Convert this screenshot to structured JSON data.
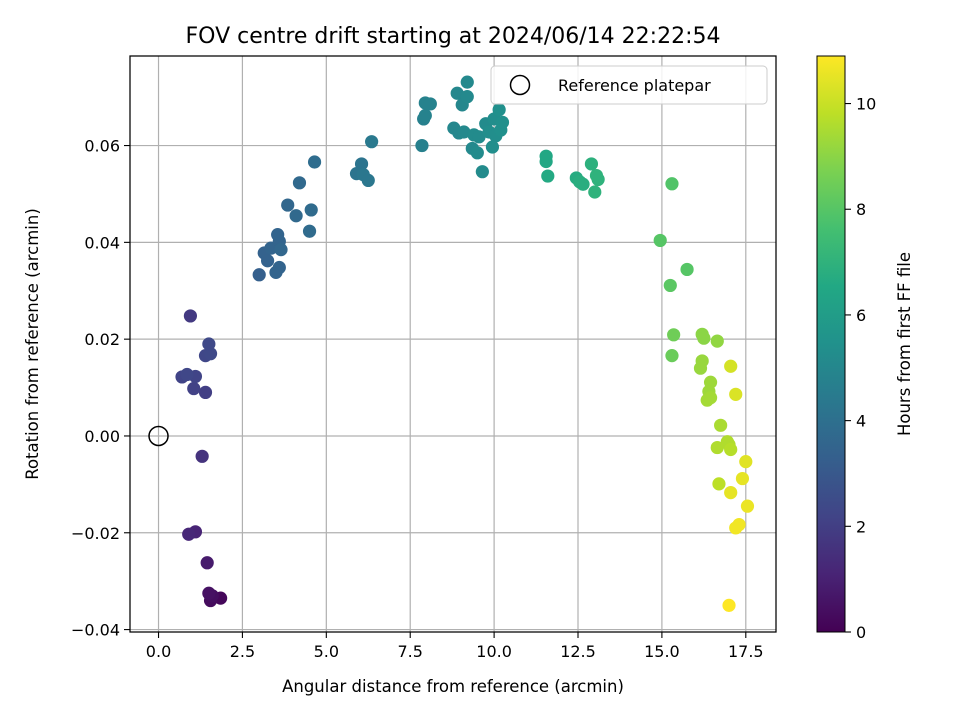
{
  "chart_data": {
    "type": "scatter",
    "title": "FOV centre drift starting at 2024/06/14 22:22:54",
    "xlabel": "Angular distance from reference (arcmin)",
    "ylabel": "Rotation from reference (arcmin)",
    "xlim": [
      -0.85,
      18.4
    ],
    "ylim": [
      -0.0405,
      0.0785
    ],
    "xticks": [
      0.0,
      2.5,
      5.0,
      7.5,
      10.0,
      12.5,
      15.0,
      17.5
    ],
    "xtick_labels": [
      "0.0",
      "2.5",
      "5.0",
      "7.5",
      "10.0",
      "12.5",
      "15.0",
      "17.5"
    ],
    "yticks": [
      -0.04,
      -0.02,
      0.0,
      0.02,
      0.04,
      0.06
    ],
    "ytick_labels": [
      "−0.04",
      "−0.02",
      "0.00",
      "0.02",
      "0.04",
      "0.06"
    ],
    "grid": true,
    "legend": {
      "placement": "top-right",
      "entries": [
        "Reference platepar"
      ]
    },
    "reference_point": {
      "name": "Reference platepar",
      "x": 0.0,
      "y": 0.0
    },
    "colorbar": {
      "label": "Hours from first FF file",
      "colormap": "viridis",
      "range": [
        0,
        10.9
      ],
      "ticks": [
        0,
        2,
        4,
        6,
        8,
        10
      ],
      "tick_labels": [
        "0",
        "2",
        "4",
        "6",
        "8",
        "10"
      ]
    },
    "points": [
      {
        "x": 1.85,
        "y": -0.0335,
        "h": 0.2
      },
      {
        "x": 1.55,
        "y": -0.034,
        "h": 0.3
      },
      {
        "x": 1.6,
        "y": -0.033,
        "h": 0.4
      },
      {
        "x": 1.5,
        "y": -0.0325,
        "h": 0.5
      },
      {
        "x": 1.45,
        "y": -0.0262,
        "h": 0.8
      },
      {
        "x": 1.1,
        "y": -0.0198,
        "h": 1.1
      },
      {
        "x": 0.9,
        "y": -0.0203,
        "h": 1.2
      },
      {
        "x": 1.3,
        "y": -0.0042,
        "h": 1.6
      },
      {
        "x": 0.95,
        "y": 0.0248,
        "h": 1.8
      },
      {
        "x": 1.4,
        "y": 0.009,
        "h": 2.0
      },
      {
        "x": 1.05,
        "y": 0.0098,
        "h": 2.1
      },
      {
        "x": 1.1,
        "y": 0.0123,
        "h": 2.2
      },
      {
        "x": 0.7,
        "y": 0.0122,
        "h": 2.2
      },
      {
        "x": 0.85,
        "y": 0.0127,
        "h": 2.3
      },
      {
        "x": 1.4,
        "y": 0.0166,
        "h": 2.3
      },
      {
        "x": 1.55,
        "y": 0.017,
        "h": 2.4
      },
      {
        "x": 1.5,
        "y": 0.019,
        "h": 2.4
      },
      {
        "x": 3.0,
        "y": 0.0333,
        "h": 3.3
      },
      {
        "x": 3.15,
        "y": 0.0378,
        "h": 3.4
      },
      {
        "x": 3.25,
        "y": 0.0362,
        "h": 3.4
      },
      {
        "x": 3.35,
        "y": 0.0388,
        "h": 3.5
      },
      {
        "x": 3.5,
        "y": 0.0338,
        "h": 3.5
      },
      {
        "x": 3.55,
        "y": 0.0416,
        "h": 3.5
      },
      {
        "x": 3.6,
        "y": 0.0402,
        "h": 3.5
      },
      {
        "x": 3.6,
        "y": 0.0348,
        "h": 3.5
      },
      {
        "x": 3.65,
        "y": 0.0385,
        "h": 3.6
      },
      {
        "x": 3.85,
        "y": 0.0477,
        "h": 3.6
      },
      {
        "x": 4.1,
        "y": 0.0455,
        "h": 3.7
      },
      {
        "x": 4.2,
        "y": 0.0523,
        "h": 3.7
      },
      {
        "x": 4.5,
        "y": 0.0423,
        "h": 3.8
      },
      {
        "x": 4.55,
        "y": 0.0467,
        "h": 3.8
      },
      {
        "x": 4.65,
        "y": 0.0566,
        "h": 3.9
      },
      {
        "x": 5.9,
        "y": 0.0542,
        "h": 4.2
      },
      {
        "x": 6.05,
        "y": 0.0562,
        "h": 4.2
      },
      {
        "x": 6.1,
        "y": 0.054,
        "h": 4.3
      },
      {
        "x": 6.25,
        "y": 0.0528,
        "h": 4.3
      },
      {
        "x": 6.35,
        "y": 0.0608,
        "h": 4.4
      },
      {
        "x": 7.85,
        "y": 0.06,
        "h": 4.7
      },
      {
        "x": 7.9,
        "y": 0.0655,
        "h": 4.7
      },
      {
        "x": 7.95,
        "y": 0.0688,
        "h": 4.8
      },
      {
        "x": 7.95,
        "y": 0.0662,
        "h": 4.8
      },
      {
        "x": 8.1,
        "y": 0.0686,
        "h": 4.8
      },
      {
        "x": 8.8,
        "y": 0.0636,
        "h": 5.0
      },
      {
        "x": 8.9,
        "y": 0.0708,
        "h": 5.0
      },
      {
        "x": 8.95,
        "y": 0.0626,
        "h": 5.0
      },
      {
        "x": 9.05,
        "y": 0.0684,
        "h": 5.0
      },
      {
        "x": 9.1,
        "y": 0.0628,
        "h": 5.1
      },
      {
        "x": 9.2,
        "y": 0.0731,
        "h": 5.1
      },
      {
        "x": 9.2,
        "y": 0.0701,
        "h": 5.1
      },
      {
        "x": 9.35,
        "y": 0.0594,
        "h": 5.1
      },
      {
        "x": 9.4,
        "y": 0.0622,
        "h": 5.2
      },
      {
        "x": 9.5,
        "y": 0.0585,
        "h": 5.2
      },
      {
        "x": 9.55,
        "y": 0.0618,
        "h": 5.2
      },
      {
        "x": 9.65,
        "y": 0.0546,
        "h": 5.2
      },
      {
        "x": 9.75,
        "y": 0.0645,
        "h": 5.2
      },
      {
        "x": 9.85,
        "y": 0.0628,
        "h": 5.3
      },
      {
        "x": 9.95,
        "y": 0.0597,
        "h": 5.3
      },
      {
        "x": 10.0,
        "y": 0.0655,
        "h": 5.3
      },
      {
        "x": 10.05,
        "y": 0.062,
        "h": 5.3
      },
      {
        "x": 10.15,
        "y": 0.0674,
        "h": 5.4
      },
      {
        "x": 10.2,
        "y": 0.0632,
        "h": 5.4
      },
      {
        "x": 10.25,
        "y": 0.0648,
        "h": 5.4
      },
      {
        "x": 11.55,
        "y": 0.0567,
        "h": 6.5
      },
      {
        "x": 11.55,
        "y": 0.0578,
        "h": 6.5
      },
      {
        "x": 11.6,
        "y": 0.0537,
        "h": 6.6
      },
      {
        "x": 12.45,
        "y": 0.0533,
        "h": 6.7
      },
      {
        "x": 12.55,
        "y": 0.0525,
        "h": 6.8
      },
      {
        "x": 12.65,
        "y": 0.052,
        "h": 6.8
      },
      {
        "x": 12.9,
        "y": 0.0562,
        "h": 6.9
      },
      {
        "x": 13.05,
        "y": 0.0538,
        "h": 7.0
      },
      {
        "x": 13.1,
        "y": 0.053,
        "h": 7.0
      },
      {
        "x": 13.0,
        "y": 0.0504,
        "h": 7.0
      },
      {
        "x": 15.3,
        "y": 0.0521,
        "h": 7.9
      },
      {
        "x": 14.95,
        "y": 0.0404,
        "h": 8.0
      },
      {
        "x": 15.75,
        "y": 0.0344,
        "h": 8.0
      },
      {
        "x": 15.25,
        "y": 0.0311,
        "h": 8.1
      },
      {
        "x": 15.3,
        "y": 0.0166,
        "h": 8.4
      },
      {
        "x": 15.35,
        "y": 0.0209,
        "h": 8.5
      },
      {
        "x": 16.2,
        "y": 0.021,
        "h": 9.0
      },
      {
        "x": 16.25,
        "y": 0.0202,
        "h": 9.0
      },
      {
        "x": 16.65,
        "y": 0.0196,
        "h": 9.1
      },
      {
        "x": 16.2,
        "y": 0.0155,
        "h": 9.2
      },
      {
        "x": 16.15,
        "y": 0.014,
        "h": 9.2
      },
      {
        "x": 16.45,
        "y": 0.0111,
        "h": 9.3
      },
      {
        "x": 16.4,
        "y": 0.0092,
        "h": 9.3
      },
      {
        "x": 16.35,
        "y": 0.0074,
        "h": 9.4
      },
      {
        "x": 16.45,
        "y": 0.0079,
        "h": 9.4
      },
      {
        "x": 16.75,
        "y": 0.0022,
        "h": 9.5
      },
      {
        "x": 16.95,
        "y": -0.0012,
        "h": 9.6
      },
      {
        "x": 17.0,
        "y": -0.0018,
        "h": 9.6
      },
      {
        "x": 16.65,
        "y": -0.0024,
        "h": 9.6
      },
      {
        "x": 17.05,
        "y": -0.0028,
        "h": 9.7
      },
      {
        "x": 16.7,
        "y": -0.0099,
        "h": 9.8
      },
      {
        "x": 17.05,
        "y": 0.0144,
        "h": 10.2
      },
      {
        "x": 17.2,
        "y": 0.0086,
        "h": 10.3
      },
      {
        "x": 17.5,
        "y": -0.0053,
        "h": 10.4
      },
      {
        "x": 17.4,
        "y": -0.0088,
        "h": 10.5
      },
      {
        "x": 17.05,
        "y": -0.0117,
        "h": 10.5
      },
      {
        "x": 17.55,
        "y": -0.0145,
        "h": 10.6
      },
      {
        "x": 17.3,
        "y": -0.0183,
        "h": 10.7
      },
      {
        "x": 17.2,
        "y": -0.019,
        "h": 10.7
      },
      {
        "x": 17.0,
        "y": -0.035,
        "h": 10.9
      }
    ]
  }
}
